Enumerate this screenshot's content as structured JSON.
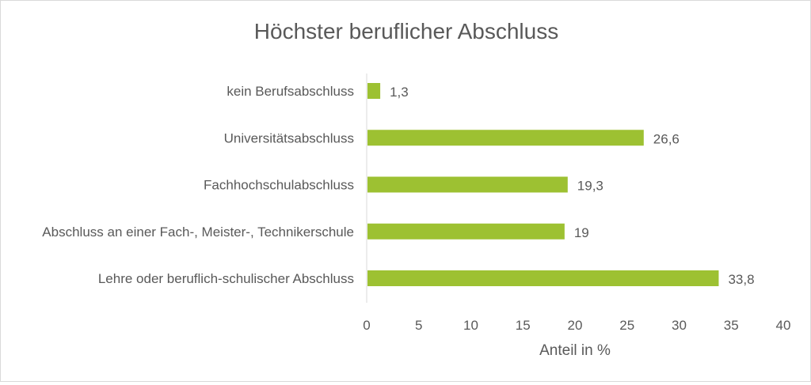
{
  "chart_data": {
    "type": "bar",
    "orientation": "horizontal",
    "title": "Höchster beruflicher Abschluss",
    "xlabel": "Anteil in %",
    "ylabel": "",
    "categories": [
      "kein Berufsabschluss",
      "Universitätsabschluss",
      "Fachhochschulabschluss",
      "Abschluss an einer Fach-, Meister-, Technikerschule",
      "Lehre oder beruflich-schulischer Abschluss"
    ],
    "values": [
      1.3,
      26.6,
      19.3,
      19,
      33.8
    ],
    "value_labels": [
      "1,3",
      "26,6",
      "19,3",
      "19",
      "33,8"
    ],
    "xlim": [
      0,
      40
    ],
    "xticks": [
      0,
      5,
      10,
      15,
      20,
      25,
      30,
      35,
      40
    ],
    "xtick_labels": [
      "0",
      "5",
      "10",
      "15",
      "20",
      "25",
      "30",
      "35",
      "40"
    ],
    "grid": false,
    "legend": "none",
    "bar_color": "#9dc132"
  }
}
